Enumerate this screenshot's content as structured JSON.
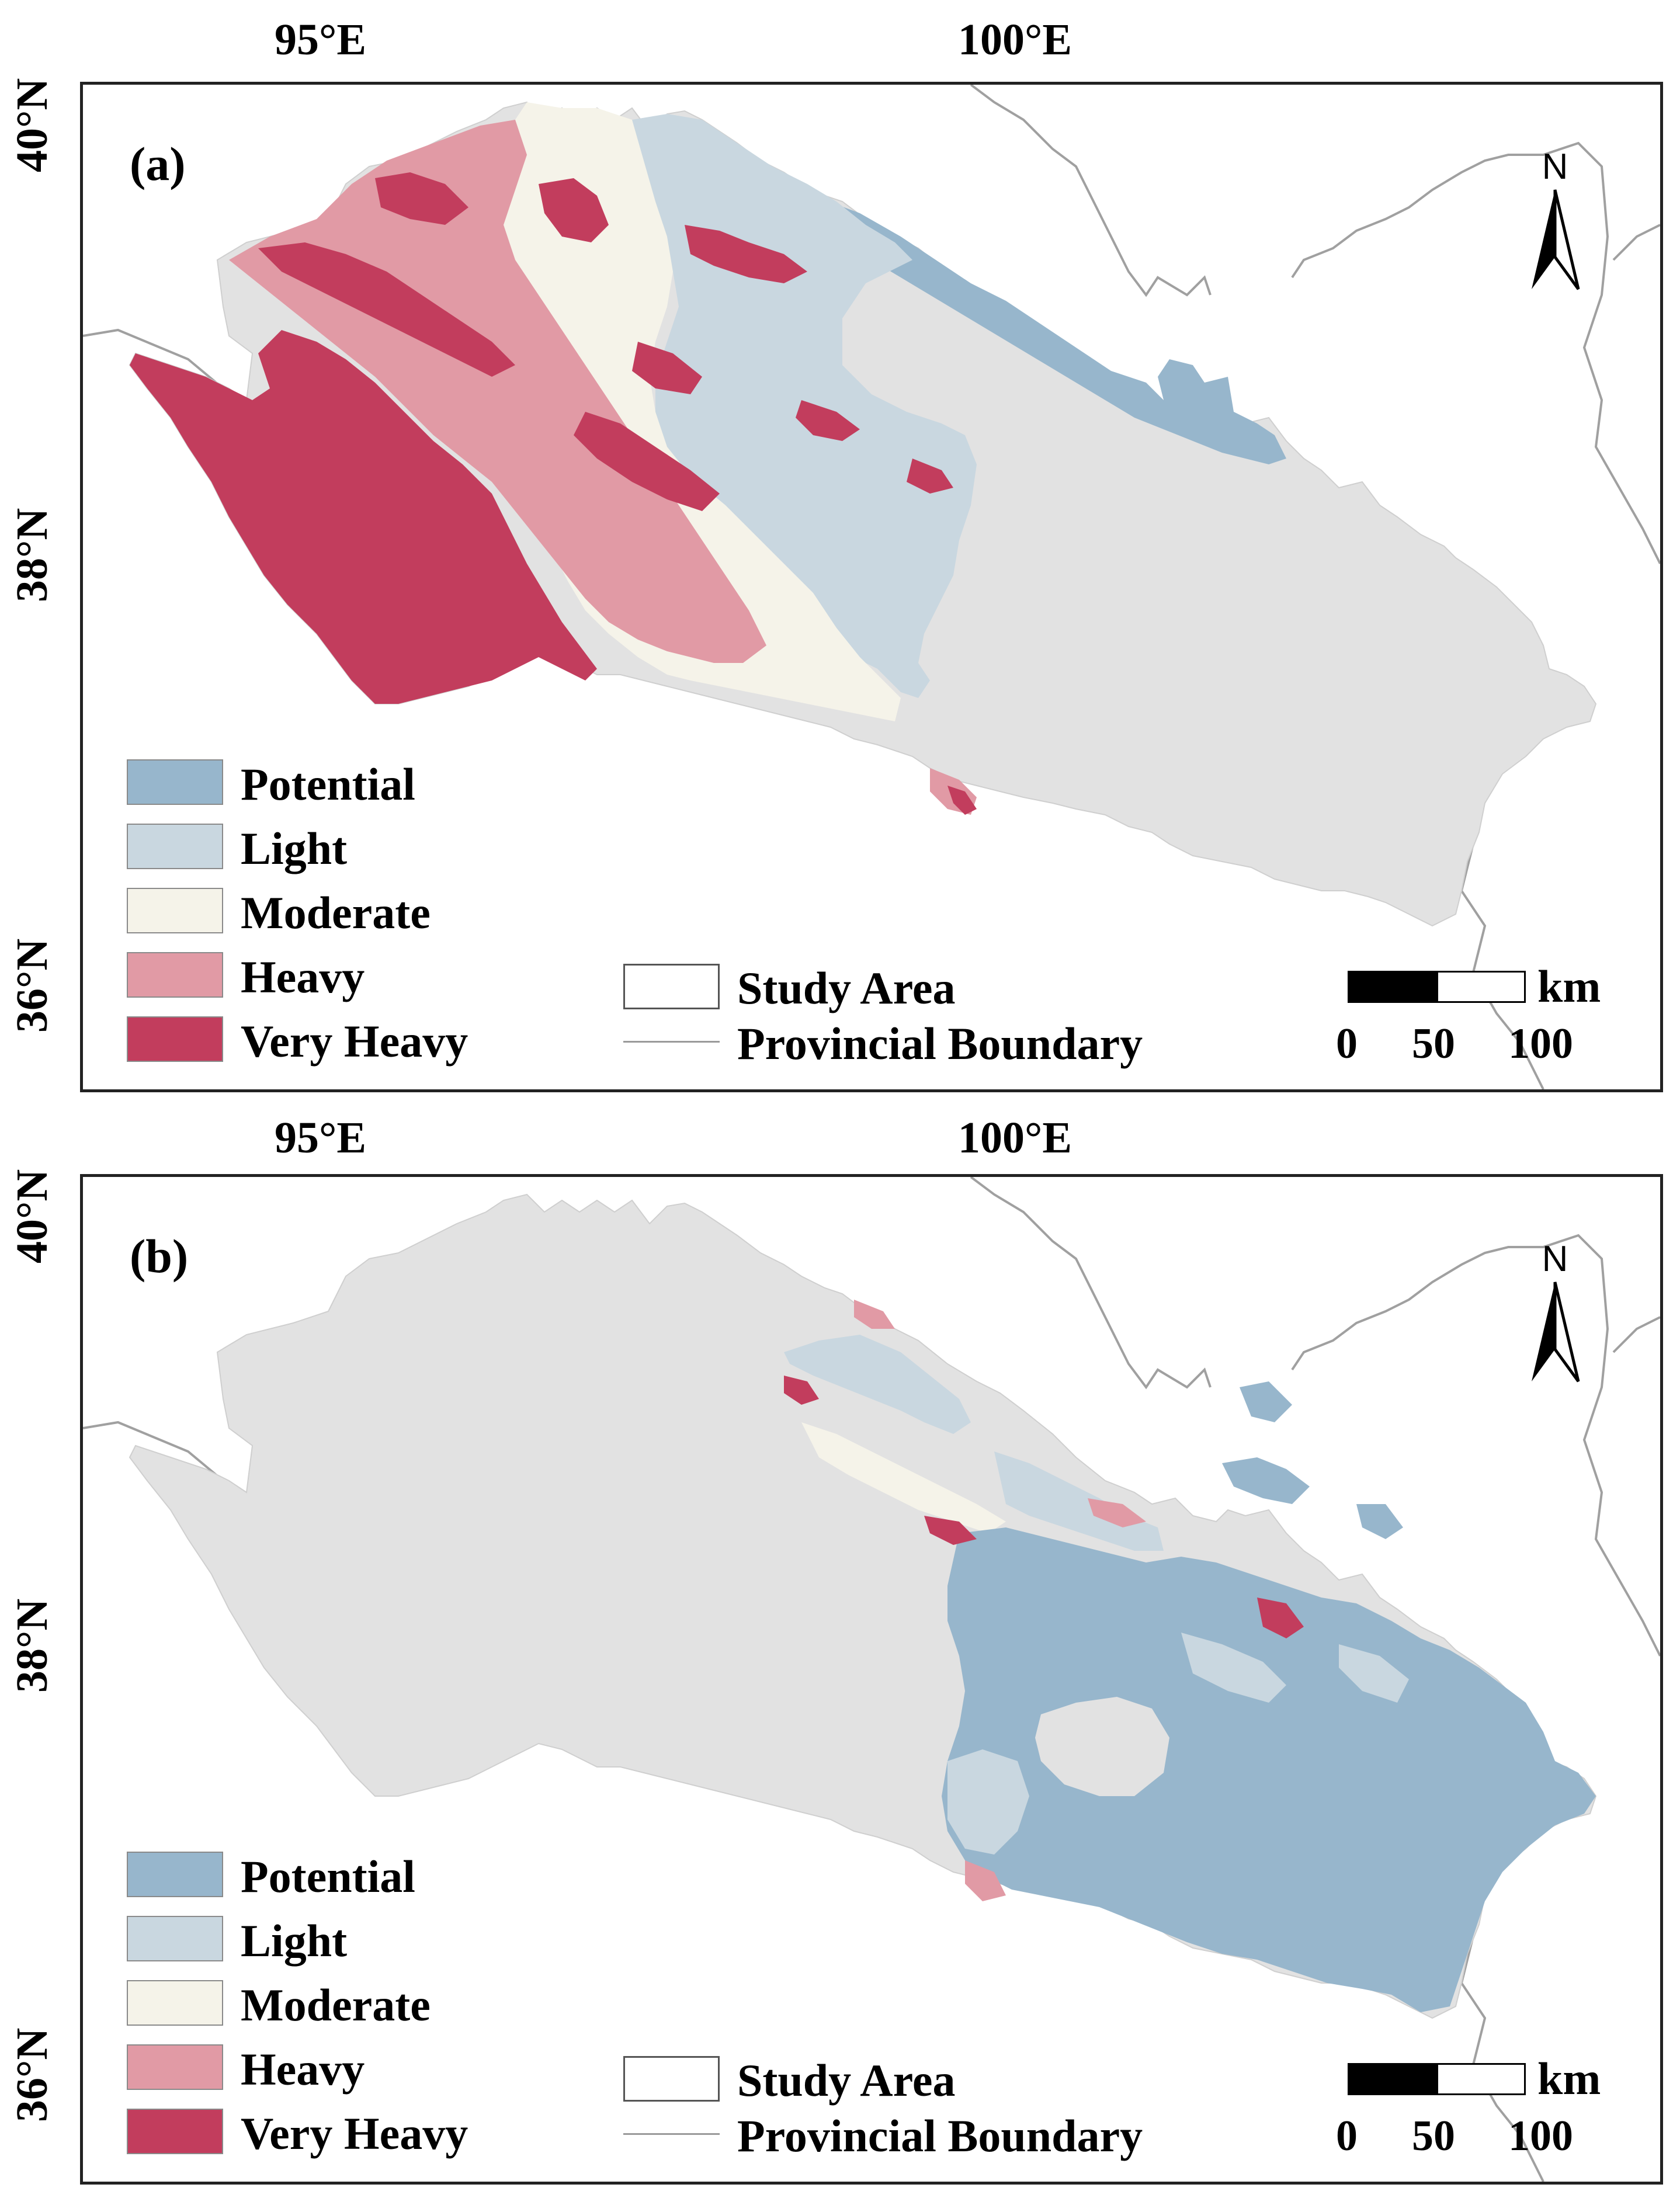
{
  "colors": {
    "potential": "#97b6cc",
    "light": "#c9d7e0",
    "moderate": "#f5f3e9",
    "heavy": "#e19aa5",
    "very_heavy": "#c23d5d",
    "study_area_fill": "#e2e2e2",
    "boundary_line": "#a0a0a0"
  },
  "axes": {
    "lon_labels": [
      "95°E",
      "100°E"
    ],
    "lat_labels": [
      "40°N",
      "38°N",
      "36°N"
    ]
  },
  "panels": [
    {
      "id": "a",
      "label": "(a)",
      "north_letter": "N",
      "legend": [
        "Potential",
        "Light",
        "Moderate",
        "Heavy",
        "Very Heavy"
      ],
      "study_area_label": "Study Area",
      "provincial_boundary_label": "Provincial Boundary",
      "scale_unit": "km",
      "scale_ticks": [
        "0",
        "50",
        "100"
      ]
    },
    {
      "id": "b",
      "label": "(b)",
      "north_letter": "N",
      "legend": [
        "Potential",
        "Light",
        "Moderate",
        "Heavy",
        "Very Heavy"
      ],
      "study_area_label": "Study Area",
      "provincial_boundary_label": "Provincial Boundary",
      "scale_unit": "km",
      "scale_ticks": [
        "0",
        "50",
        "100"
      ]
    }
  ]
}
